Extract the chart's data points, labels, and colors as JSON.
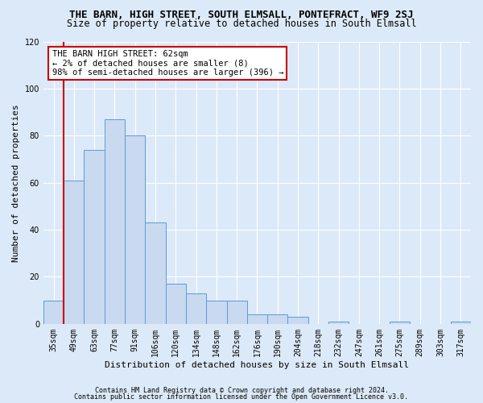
{
  "title": "THE BARN, HIGH STREET, SOUTH ELMSALL, PONTEFRACT, WF9 2SJ",
  "subtitle": "Size of property relative to detached houses in South Elmsall",
  "xlabel": "Distribution of detached houses by size in South Elmsall",
  "ylabel": "Number of detached properties",
  "footnote1": "Contains HM Land Registry data © Crown copyright and database right 2024.",
  "footnote2": "Contains public sector information licensed under the Open Government Licence v3.0.",
  "categories": [
    "35sqm",
    "49sqm",
    "63sqm",
    "77sqm",
    "91sqm",
    "106sqm",
    "120sqm",
    "134sqm",
    "148sqm",
    "162sqm",
    "176sqm",
    "190sqm",
    "204sqm",
    "218sqm",
    "232sqm",
    "247sqm",
    "261sqm",
    "275sqm",
    "289sqm",
    "303sqm",
    "317sqm"
  ],
  "values": [
    10,
    61,
    74,
    87,
    80,
    43,
    17,
    13,
    10,
    10,
    4,
    4,
    3,
    0,
    1,
    0,
    0,
    1,
    0,
    0,
    1
  ],
  "bar_color": "#c9d9f0",
  "bar_edge_color": "#5b9bd5",
  "vline_color": "#cc0000",
  "vline_x_index": 1,
  "annotation_text": "THE BARN HIGH STREET: 62sqm\n← 2% of detached houses are smaller (8)\n98% of semi-detached houses are larger (396) →",
  "annotation_box_color": "#ffffff",
  "annotation_box_edge_color": "#cc0000",
  "ylim": [
    0,
    120
  ],
  "yticks": [
    0,
    20,
    40,
    60,
    80,
    100,
    120
  ],
  "bg_color": "#dce9f8",
  "grid_color": "#ffffff",
  "title_fontsize": 9,
  "subtitle_fontsize": 8.5,
  "tick_fontsize": 7,
  "xlabel_fontsize": 8,
  "ylabel_fontsize": 8,
  "annotation_fontsize": 7.5,
  "footnote_fontsize": 6
}
